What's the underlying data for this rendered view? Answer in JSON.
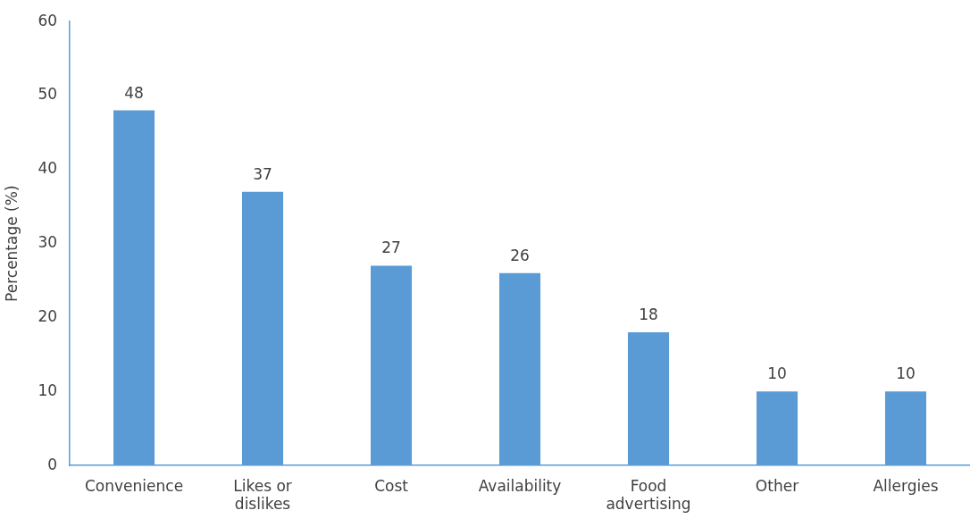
{
  "chart_data": {
    "type": "bar",
    "ylabel": "Percentage (%)",
    "categories": [
      "Convenience",
      "Likes or dislikes",
      "Cost",
      "Availability",
      "Food advertising",
      "Other",
      "Allergies"
    ],
    "values": [
      48,
      37,
      27,
      26,
      18,
      10,
      10
    ],
    "color": "#5b9bd5",
    "ylim": [
      0,
      60
    ],
    "yticks": [
      0,
      10,
      20,
      30,
      40,
      50,
      60
    ],
    "grid": false,
    "legend": false,
    "data_labels": true
  }
}
